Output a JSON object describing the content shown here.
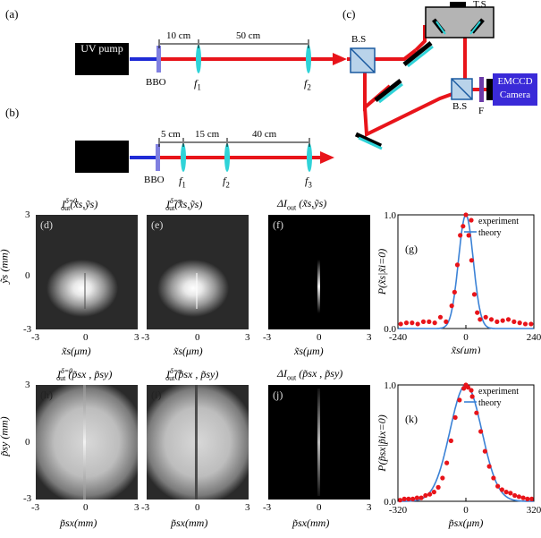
{
  "setup": {
    "a_label": "(a)",
    "b_label": "(b)",
    "c_label": "(c)",
    "uv_pump": "UV pump",
    "bbo": "BBO",
    "a_dist1": "10 cm",
    "a_dist2": "50 cm",
    "a_f1": "f",
    "a_f1_sub": "1",
    "a_f2": "f",
    "a_f2_sub": "2",
    "b_dist1": "5 cm",
    "b_dist2": "15 cm",
    "b_dist3": "40 cm",
    "b_f1": "f",
    "b_f1_sub": "1",
    "b_f2": "f",
    "b_f2_sub": "2",
    "b_f3": "f",
    "b_f3_sub": "3",
    "bs1": "B.S",
    "bs2": "B.S",
    "ts": "T.S",
    "filter": "F",
    "camera_line1": "EMCCD",
    "camera_line2": "Camera",
    "colors": {
      "beam_red": "#e8141a",
      "beam_blue": "#1f2bd6",
      "lens": "#2fd3d8",
      "bbo": "#8080e0",
      "camera": "#3a2ad8"
    }
  },
  "images_row1": [
    {
      "label": "(d)",
      "title": "I",
      "title_sup": "δ=0",
      "title_sub": "out",
      "title_args": "(x̃s,ỹs)"
    },
    {
      "label": "(e)",
      "title": "I",
      "title_sup": "δ=π",
      "title_sub": "out",
      "title_args": "(x̃s,ỹs)"
    },
    {
      "label": "(f)",
      "title": "ΔI",
      "title_sup": "",
      "title_sub": "out",
      "title_args": " (x̃s,ỹs)"
    }
  ],
  "images_row2": [
    {
      "label": "(h)",
      "title": "I",
      "title_sup": "δ=0",
      "title_sub": "out",
      "title_args": " (p̃sx , p̃sy)"
    },
    {
      "label": "(i)",
      "title": "I",
      "title_sup": "δ=π",
      "title_sub": "out",
      "title_args": "(p̃sx , p̃sy)"
    },
    {
      "label": "(j)",
      "title": "ΔI",
      "title_sup": "",
      "title_sub": "out",
      "title_args": " (p̃sx , p̃sy)"
    }
  ],
  "row1_axes": {
    "ylabel": "ỹs (mm)",
    "xlabel": "x̃s(μm)",
    "yticks": [
      "3",
      "0",
      "-3"
    ],
    "xticks": [
      "-3",
      "0",
      "3"
    ]
  },
  "row2_axes": {
    "ylabel": "p̃sy (mm)",
    "xlabel": "p̃sx(mm)",
    "yticks": [
      "3",
      "0",
      "-3"
    ],
    "xticks": [
      "-3",
      "0",
      "3"
    ]
  },
  "chart_data": [
    {
      "type": "scatter",
      "panel_label": "(g)",
      "ylabel": "P(x̃s|x̃i=0)",
      "xlabel": "x̃s(μm)",
      "xlim": [
        -240,
        240
      ],
      "ylim": [
        0,
        1
      ],
      "xticks": [
        "-240",
        "0",
        "240"
      ],
      "yticks": [
        "0.0",
        "1.0"
      ],
      "series": [
        {
          "name": "experiment",
          "kind": "points",
          "color": "#e8141a",
          "x": [
            -230,
            -210,
            -190,
            -170,
            -150,
            -130,
            -110,
            -90,
            -70,
            -50,
            -40,
            -30,
            -20,
            -10,
            0,
            10,
            20,
            30,
            40,
            50,
            70,
            90,
            110,
            130,
            150,
            170,
            190,
            210,
            230
          ],
          "y": [
            0.04,
            0.05,
            0.05,
            0.04,
            0.06,
            0.06,
            0.05,
            0.1,
            0.06,
            0.2,
            0.32,
            0.56,
            0.82,
            0.9,
            1.0,
            0.82,
            0.6,
            0.3,
            0.14,
            0.08,
            0.1,
            0.08,
            0.06,
            0.07,
            0.08,
            0.06,
            0.05,
            0.04,
            0.04
          ]
        },
        {
          "name": "theory",
          "kind": "line",
          "color": "#3b82d6",
          "center": 0,
          "sigma": 26,
          "amp": 1.0
        }
      ]
    },
    {
      "type": "scatter",
      "panel_label": "(k)",
      "ylabel": "P(p̃sx|p̃ix=0)",
      "xlabel": "p̃sx(μm)",
      "xlim": [
        -320,
        320
      ],
      "ylim": [
        0,
        1
      ],
      "xticks": [
        "-320",
        "0",
        "320"
      ],
      "yticks": [
        "0.0",
        "1.0"
      ],
      "series": [
        {
          "name": "experiment",
          "kind": "points",
          "color": "#e8141a",
          "x": [
            -310,
            -290,
            -270,
            -250,
            -230,
            -210,
            -190,
            -170,
            -150,
            -130,
            -110,
            -90,
            -70,
            -50,
            -30,
            -10,
            0,
            10,
            30,
            50,
            70,
            90,
            110,
            130,
            150,
            170,
            190,
            210,
            230,
            250,
            270,
            290,
            310
          ],
          "y": [
            0.01,
            0.02,
            0.02,
            0.02,
            0.03,
            0.03,
            0.05,
            0.06,
            0.08,
            0.12,
            0.2,
            0.33,
            0.52,
            0.72,
            0.87,
            0.97,
            1.0,
            0.98,
            0.9,
            0.76,
            0.6,
            0.43,
            0.3,
            0.2,
            0.13,
            0.1,
            0.08,
            0.07,
            0.05,
            0.04,
            0.03,
            0.02,
            0.02
          ]
        },
        {
          "name": "theory",
          "kind": "line",
          "color": "#3b82d6",
          "center": 0,
          "sigma": 75,
          "amp": 1.0
        }
      ]
    }
  ]
}
